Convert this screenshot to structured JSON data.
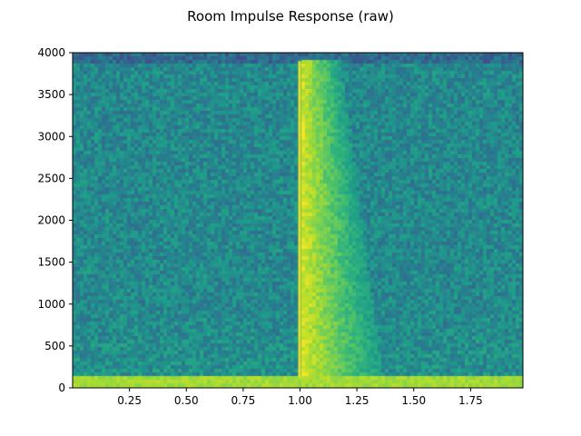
{
  "chart_data": {
    "type": "heatmap",
    "subtype": "spectrogram",
    "title": "Room Impulse Response (raw)",
    "xlabel": "",
    "ylabel": "",
    "xlim": [
      0.0,
      1.98
    ],
    "ylim": [
      0,
      4000
    ],
    "xticks": [
      0.25,
      0.5,
      0.75,
      1.0,
      1.25,
      1.5,
      1.75
    ],
    "xtick_labels": [
      "0.25",
      "0.50",
      "0.75",
      "1.00",
      "1.25",
      "1.50",
      "1.75"
    ],
    "yticks": [
      0,
      500,
      1000,
      1500,
      2000,
      2500,
      3000,
      3500,
      4000
    ],
    "ytick_labels": [
      "0",
      "500",
      "1000",
      "1500",
      "2000",
      "2500",
      "3000",
      "3500",
      "4000"
    ],
    "colormap": "viridis",
    "grid": false,
    "features": {
      "impulse_time": 1.0,
      "impulse_freq_range": [
        130,
        3900
      ],
      "reverb_decay_start": 1.0,
      "reverb_decay_end_approx": 1.3,
      "low_freq_band": [
        0,
        110
      ],
      "top_band_freq_range": [
        3850,
        4000
      ]
    }
  }
}
